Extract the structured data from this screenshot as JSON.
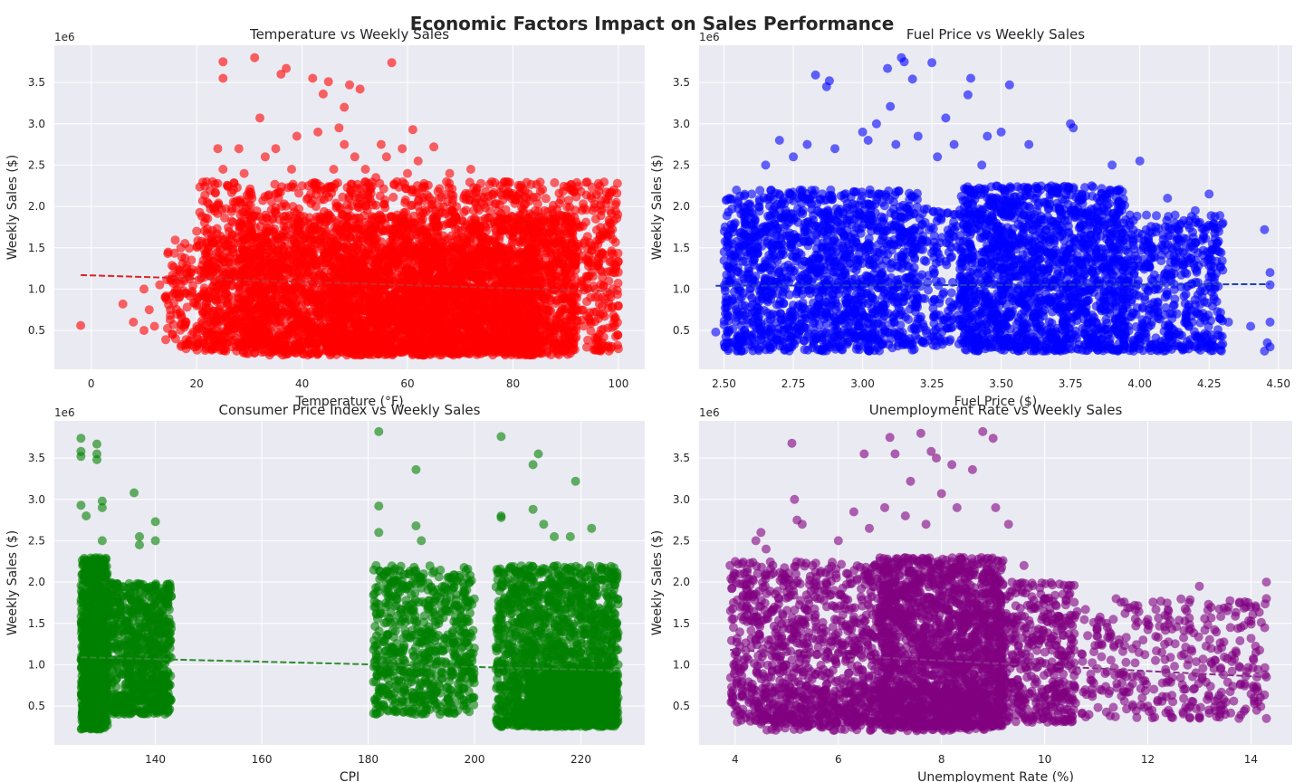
{
  "figure": {
    "title": "Economic Factors Impact on Sales Performance",
    "background": "#ffffff",
    "axes_background": "#eaeaf2",
    "grid_color": "#ffffff"
  },
  "chart_data": [
    {
      "type": "scatter",
      "title": "Temperature vs Weekly Sales",
      "xlabel": "Temperature (°F)",
      "ylabel": "Weekly Sales ($)",
      "y_scale_label": "1e6",
      "xlim": [
        -7,
        105
      ],
      "ylim": [
        0.03,
        3.95
      ],
      "xticks": [
        0,
        20,
        40,
        60,
        80,
        100
      ],
      "xtick_labels": [
        "0",
        "20",
        "40",
        "60",
        "80",
        "100"
      ],
      "yticks": [
        0.5,
        1.0,
        1.5,
        2.0,
        2.5,
        3.0,
        3.5
      ],
      "ytick_labels": [
        "0.5",
        "1.0",
        "1.5",
        "2.0",
        "2.5",
        "3.0",
        "3.5"
      ],
      "grid": true,
      "color": "#ff0000",
      "trend_color": "#d62728",
      "trend_line": [
        [
          -2,
          1.17
        ],
        [
          100,
          0.97
        ]
      ],
      "points": [
        [
          -2,
          0.56
        ],
        [
          6,
          0.82
        ],
        [
          8,
          0.6
        ],
        [
          10,
          0.5
        ],
        [
          10,
          1.0
        ],
        [
          11,
          0.75
        ],
        [
          12,
          0.55
        ],
        [
          13,
          1.05
        ],
        [
          14,
          0.9
        ],
        [
          15,
          0.68
        ],
        [
          16,
          1.15
        ],
        [
          16,
          0.4
        ],
        [
          17,
          1.5
        ],
        [
          18,
          0.95
        ],
        [
          18,
          0.6
        ],
        [
          18,
          0.28
        ],
        [
          19,
          1.35
        ],
        [
          20,
          1.7
        ],
        [
          20,
          0.8
        ],
        [
          21,
          1.88
        ],
        [
          21,
          0.5
        ],
        [
          22,
          2.05
        ],
        [
          22,
          1.25
        ],
        [
          23,
          0.3
        ],
        [
          23,
          2.3
        ],
        [
          24,
          2.7
        ],
        [
          24,
          1.6
        ],
        [
          25,
          3.55
        ],
        [
          25,
          3.75
        ],
        [
          25,
          2.45
        ],
        [
          26,
          0.9
        ],
        [
          27,
          2.2
        ],
        [
          28,
          2.7
        ],
        [
          29,
          2.4
        ],
        [
          30,
          0.35
        ],
        [
          31,
          3.8
        ],
        [
          32,
          3.07
        ],
        [
          33,
          2.6
        ],
        [
          34,
          0.5
        ],
        [
          35,
          2.7
        ],
        [
          36,
          3.6
        ],
        [
          37,
          3.67
        ],
        [
          38,
          2.45
        ],
        [
          39,
          2.85
        ],
        [
          40,
          2.25
        ],
        [
          42,
          3.55
        ],
        [
          43,
          2.9
        ],
        [
          44,
          3.36
        ],
        [
          45,
          3.51
        ],
        [
          46,
          2.45
        ],
        [
          47,
          2.95
        ],
        [
          48,
          3.2
        ],
        [
          48,
          2.75
        ],
        [
          49,
          3.47
        ],
        [
          50,
          2.6
        ],
        [
          51,
          3.42
        ],
        [
          52,
          2.45
        ],
        [
          54,
          2.35
        ],
        [
          55,
          2.75
        ],
        [
          56,
          2.6
        ],
        [
          57,
          3.74
        ],
        [
          58,
          2.3
        ],
        [
          59,
          2.7
        ],
        [
          60,
          2.4
        ],
        [
          61,
          2.93
        ],
        [
          62,
          2.55
        ],
        [
          65,
          2.72
        ],
        [
          68,
          2.4
        ],
        [
          72,
          2.45
        ],
        [
          76,
          2.3
        ],
        [
          79,
          2.3
        ],
        [
          83,
          2.15
        ],
        [
          86,
          1.95
        ],
        [
          88,
          1.8
        ],
        [
          90,
          1.5
        ],
        [
          92,
          1.35
        ],
        [
          93,
          1.1
        ],
        [
          94,
          0.85
        ],
        [
          95,
          1.2
        ],
        [
          96,
          0.4
        ],
        [
          97,
          0.9
        ],
        [
          98,
          0.3
        ],
        [
          99,
          1.2
        ],
        [
          100,
          0.28
        ]
      ],
      "cloud": [
        {
          "x": [
            20,
            100
          ],
          "y": [
            0.25,
            2.3
          ],
          "n": 2200,
          "seed": 11
        },
        {
          "x": [
            28,
            92
          ],
          "y": [
            0.2,
            1.9
          ],
          "n": 2400,
          "seed": 12
        },
        {
          "x": [
            45,
            85
          ],
          "y": [
            0.2,
            1.5
          ],
          "n": 1200,
          "seed": 13
        },
        {
          "x": [
            14,
            35
          ],
          "y": [
            0.3,
            1.6
          ],
          "n": 300,
          "seed": 14
        }
      ]
    },
    {
      "type": "scatter",
      "title": "Fuel Price vs Weekly Sales",
      "xlabel": "Fuel Price ($)",
      "ylabel": "Weekly Sales ($)",
      "y_scale_label": "1e6",
      "xlim": [
        2.41,
        4.55
      ],
      "ylim": [
        0.03,
        3.95
      ],
      "xticks": [
        2.5,
        2.75,
        3.0,
        3.25,
        3.5,
        3.75,
        4.0,
        4.25,
        4.5
      ],
      "xtick_labels": [
        "2.50",
        "2.75",
        "3.00",
        "3.25",
        "3.50",
        "3.75",
        "4.00",
        "4.25",
        "4.50"
      ],
      "yticks": [
        0.5,
        1.0,
        1.5,
        2.0,
        2.5,
        3.0,
        3.5
      ],
      "ytick_labels": [
        "0.5",
        "1.0",
        "1.5",
        "2.0",
        "2.5",
        "3.0",
        "3.5"
      ],
      "grid": true,
      "color": "#0000ff",
      "trend_color": "#1f3fbf",
      "trend_line": [
        [
          2.47,
          1.04
        ],
        [
          4.47,
          1.06
        ]
      ],
      "points": [
        [
          2.47,
          0.48
        ],
        [
          2.52,
          2.1
        ],
        [
          2.53,
          1.55
        ],
        [
          2.55,
          0.3
        ],
        [
          2.6,
          2.15
        ],
        [
          2.65,
          2.5
        ],
        [
          2.7,
          2.8
        ],
        [
          2.75,
          2.6
        ],
        [
          2.8,
          2.75
        ],
        [
          2.83,
          3.59
        ],
        [
          2.87,
          3.45
        ],
        [
          2.88,
          3.52
        ],
        [
          2.9,
          2.7
        ],
        [
          3.0,
          2.9
        ],
        [
          3.02,
          2.8
        ],
        [
          3.05,
          3.0
        ],
        [
          3.09,
          3.67
        ],
        [
          3.1,
          3.21
        ],
        [
          3.12,
          2.75
        ],
        [
          3.14,
          3.8
        ],
        [
          3.15,
          3.75
        ],
        [
          3.18,
          3.54
        ],
        [
          3.2,
          2.85
        ],
        [
          3.25,
          3.74
        ],
        [
          3.27,
          2.6
        ],
        [
          3.3,
          3.07
        ],
        [
          3.33,
          2.75
        ],
        [
          3.38,
          3.35
        ],
        [
          3.39,
          3.55
        ],
        [
          3.43,
          2.5
        ],
        [
          3.45,
          2.85
        ],
        [
          3.5,
          2.9
        ],
        [
          3.53,
          3.47
        ],
        [
          3.6,
          2.75
        ],
        [
          3.75,
          3.0
        ],
        [
          3.76,
          2.95
        ],
        [
          3.9,
          2.5
        ],
        [
          4.0,
          2.55
        ],
        [
          4.1,
          2.1
        ],
        [
          4.2,
          1.95
        ],
        [
          4.25,
          2.15
        ],
        [
          4.3,
          1.8
        ],
        [
          4.32,
          0.6
        ],
        [
          4.4,
          0.55
        ],
        [
          4.45,
          1.72
        ],
        [
          4.47,
          1.2
        ],
        [
          4.46,
          0.35
        ],
        [
          4.47,
          1.05
        ],
        [
          4.45,
          0.25
        ],
        [
          4.47,
          0.6
        ],
        [
          4.47,
          0.3
        ]
      ],
      "cloud": [
        {
          "x": [
            2.5,
            3.2
          ],
          "y": [
            0.25,
            2.2
          ],
          "n": 1500,
          "seed": 21
        },
        {
          "x": [
            3.35,
            3.95
          ],
          "y": [
            0.25,
            2.25
          ],
          "n": 1700,
          "seed": 22
        },
        {
          "x": [
            3.95,
            4.3
          ],
          "y": [
            0.25,
            1.9
          ],
          "n": 500,
          "seed": 23
        },
        {
          "x": [
            3.2,
            3.35
          ],
          "y": [
            0.3,
            2.0
          ],
          "n": 150,
          "seed": 24
        }
      ]
    },
    {
      "type": "scatter",
      "title": "Consumer Price Index vs Weekly Sales",
      "xlabel": "CPI",
      "ylabel": "Weekly Sales ($)",
      "y_scale_label": "1e6",
      "xlim": [
        121,
        232
      ],
      "ylim": [
        0.03,
        3.95
      ],
      "xticks": [
        140,
        160,
        180,
        200,
        220
      ],
      "xtick_labels": [
        "140",
        "160",
        "180",
        "200",
        "220"
      ],
      "yticks": [
        0.5,
        1.0,
        1.5,
        2.0,
        2.5,
        3.0,
        3.5
      ],
      "ytick_labels": [
        "0.5",
        "1.0",
        "1.5",
        "2.0",
        "2.5",
        "3.0",
        "3.5"
      ],
      "grid": true,
      "color": "#008000",
      "trend_color": "#2e8b2e",
      "trend_line": [
        [
          126,
          1.09
        ],
        [
          227,
          0.93
        ]
      ],
      "points": [
        [
          126,
          3.74
        ],
        [
          126,
          3.58
        ],
        [
          126,
          3.52
        ],
        [
          126,
          2.93
        ],
        [
          127,
          2.8
        ],
        [
          129,
          3.67
        ],
        [
          129,
          3.55
        ],
        [
          129,
          3.48
        ],
        [
          130,
          2.98
        ],
        [
          130,
          2.9
        ],
        [
          130,
          2.5
        ],
        [
          136,
          3.08
        ],
        [
          137,
          2.55
        ],
        [
          137,
          2.45
        ],
        [
          140,
          2.73
        ],
        [
          140,
          2.5
        ],
        [
          182,
          3.82
        ],
        [
          182,
          2.92
        ],
        [
          182,
          2.6
        ],
        [
          189,
          3.36
        ],
        [
          189,
          2.68
        ],
        [
          190,
          2.5
        ],
        [
          205,
          3.76
        ],
        [
          205,
          2.8
        ],
        [
          205,
          2.78
        ],
        [
          211,
          3.42
        ],
        [
          212,
          3.55
        ],
        [
          211,
          2.88
        ],
        [
          213,
          2.7
        ],
        [
          215,
          2.55
        ],
        [
          218,
          2.55
        ],
        [
          219,
          3.22
        ],
        [
          222,
          2.65
        ],
        [
          224,
          2.1
        ],
        [
          226,
          1.85
        ],
        [
          225,
          1.3
        ],
        [
          227,
          1.0
        ],
        [
          227,
          0.6
        ]
      ],
      "cloud": [
        {
          "x": [
            126,
            131
          ],
          "y": [
            0.22,
            2.3
          ],
          "n": 900,
          "seed": 31
        },
        {
          "x": [
            131,
            143
          ],
          "y": [
            0.4,
            2.0
          ],
          "n": 800,
          "seed": 32
        },
        {
          "x": [
            181,
            200
          ],
          "y": [
            0.4,
            2.2
          ],
          "n": 700,
          "seed": 33
        },
        {
          "x": [
            204,
            227
          ],
          "y": [
            0.25,
            2.2
          ],
          "n": 1500,
          "seed": 34
        },
        {
          "x": [
            210,
            227
          ],
          "y": [
            0.25,
            0.9
          ],
          "n": 700,
          "seed": 35
        }
      ]
    },
    {
      "type": "scatter",
      "title": "Unemployment Rate vs Weekly Sales",
      "xlabel": "Unemployment Rate (%)",
      "ylabel": "Weekly Sales ($)",
      "y_scale_label": "1e6",
      "xlim": [
        3.3,
        14.8
      ],
      "ylim": [
        0.03,
        3.95
      ],
      "xticks": [
        4,
        6,
        8,
        10,
        12,
        14
      ],
      "xtick_labels": [
        "4",
        "6",
        "8",
        "10",
        "12",
        "14"
      ],
      "yticks": [
        0.5,
        1.0,
        1.5,
        2.0,
        2.5,
        3.0,
        3.5
      ],
      "ytick_labels": [
        "0.5",
        "1.0",
        "1.5",
        "2.0",
        "2.5",
        "3.0",
        "3.5"
      ],
      "grid": true,
      "color": "#800080",
      "trend_color": "#8b2d8b",
      "trend_line": [
        [
          3.9,
          1.18
        ],
        [
          14.3,
          0.85
        ]
      ],
      "points": [
        [
          3.9,
          2.2
        ],
        [
          4.0,
          2.1
        ],
        [
          4.4,
          2.5
        ],
        [
          4.5,
          2.6
        ],
        [
          4.6,
          2.4
        ],
        [
          5.0,
          0.6
        ],
        [
          5.1,
          3.68
        ],
        [
          5.15,
          3.0
        ],
        [
          5.2,
          2.75
        ],
        [
          5.3,
          2.7
        ],
        [
          5.5,
          2.2
        ],
        [
          6.0,
          2.5
        ],
        [
          6.3,
          2.85
        ],
        [
          6.5,
          3.55
        ],
        [
          6.6,
          2.65
        ],
        [
          6.9,
          2.9
        ],
        [
          7.0,
          3.75
        ],
        [
          7.1,
          3.55
        ],
        [
          7.3,
          2.8
        ],
        [
          7.4,
          3.22
        ],
        [
          7.6,
          3.8
        ],
        [
          7.7,
          2.7
        ],
        [
          7.8,
          3.58
        ],
        [
          7.9,
          3.5
        ],
        [
          8.0,
          3.07
        ],
        [
          8.2,
          3.42
        ],
        [
          8.3,
          2.9
        ],
        [
          8.6,
          3.36
        ],
        [
          8.8,
          3.82
        ],
        [
          9.0,
          3.74
        ],
        [
          9.05,
          2.9
        ],
        [
          9.3,
          2.7
        ],
        [
          9.6,
          2.2
        ],
        [
          10.0,
          1.8
        ],
        [
          10.5,
          1.6
        ],
        [
          11.2,
          1.5
        ],
        [
          12.0,
          1.55
        ],
        [
          12.0,
          0.5
        ],
        [
          12.4,
          1.65
        ],
        [
          12.8,
          1.75
        ],
        [
          13.0,
          1.95
        ],
        [
          13.6,
          1.45
        ],
        [
          14.0,
          1.7
        ],
        [
          14.3,
          2.0
        ],
        [
          14.3,
          1.8
        ],
        [
          14.3,
          0.35
        ],
        [
          13.5,
          0.4
        ],
        [
          12.4,
          0.45
        ]
      ],
      "cloud": [
        {
          "x": [
            3.9,
            7.0
          ],
          "y": [
            0.3,
            2.25
          ],
          "n": 900,
          "seed": 41
        },
        {
          "x": [
            6.8,
            9.2
          ],
          "y": [
            0.25,
            2.3
          ],
          "n": 1700,
          "seed": 42
        },
        {
          "x": [
            9.0,
            10.6
          ],
          "y": [
            0.3,
            2.0
          ],
          "n": 450,
          "seed": 43
        },
        {
          "x": [
            10.6,
            14.3
          ],
          "y": [
            0.35,
            1.8
          ],
          "n": 350,
          "seed": 44
        },
        {
          "x": [
            4.5,
            9.0
          ],
          "y": [
            0.2,
            0.7
          ],
          "n": 400,
          "seed": 45
        }
      ]
    }
  ]
}
